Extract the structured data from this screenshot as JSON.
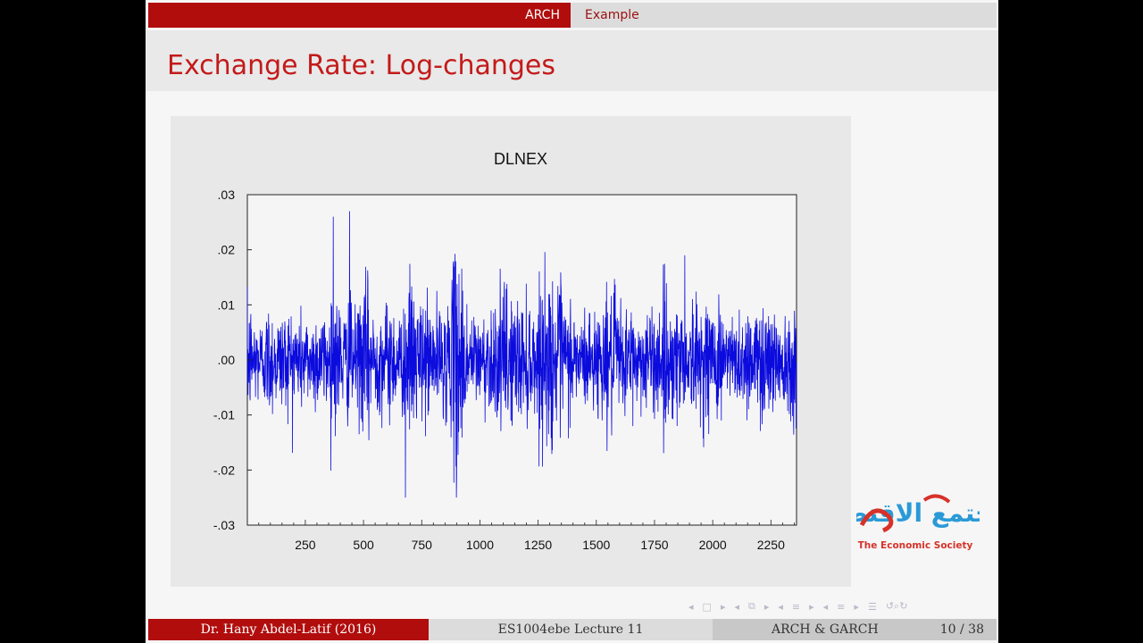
{
  "header": {
    "section": "ARCH",
    "subsection": "Example"
  },
  "slide": {
    "title": "Exchange Rate: Log-changes"
  },
  "chart_data": {
    "type": "line",
    "title": "DLNEX",
    "xlabel": "",
    "ylabel": "",
    "xlim": [
      1,
      2360
    ],
    "ylim": [
      -0.03,
      0.03
    ],
    "x_ticks": [
      250,
      500,
      750,
      1000,
      1250,
      1500,
      1750,
      2000,
      2250
    ],
    "y_ticks": [
      ".03",
      ".02",
      ".01",
      ".00",
      "-.01",
      "-.02",
      "-.03"
    ],
    "y_tick_values": [
      0.03,
      0.02,
      0.01,
      0.0,
      -0.01,
      -0.02,
      -0.03
    ],
    "grid": false,
    "series": [
      {
        "name": "",
        "color": "#0b0bdd",
        "n": 2360,
        "approx_range": [
          -0.025,
          0.027
        ],
        "noted_extremes": [
          {
            "x": 370,
            "y": 0.026
          },
          {
            "x": 440,
            "y": 0.027
          },
          {
            "x": 680,
            "y": -0.025
          },
          {
            "x": 900,
            "y": -0.021
          },
          {
            "x": 1880,
            "y": 0.019
          }
        ]
      }
    ]
  },
  "logo": {
    "arabic": "مجتمع الاقتصاد",
    "english": "The Economic Society"
  },
  "footer": {
    "author": "Dr. Hany Abdel-Latif  (2016)",
    "course": "ES1004ebe Lecture 11",
    "short_title": "ARCH & GARCH",
    "page": "10 / 38"
  },
  "nav": {
    "icons": [
      "nav-frame-prev-icon",
      "nav-frame-icon",
      "nav-frame-next-icon",
      "nav-subsection-prev-icon",
      "nav-subsection-icon",
      "nav-subsection-next-icon",
      "nav-section-prev-icon",
      "nav-section-icon",
      "nav-section-next-icon",
      "nav-doc-prev-icon",
      "nav-doc-icon",
      "nav-doc-next-icon",
      "nav-toc-icon",
      "nav-search-icon"
    ]
  }
}
